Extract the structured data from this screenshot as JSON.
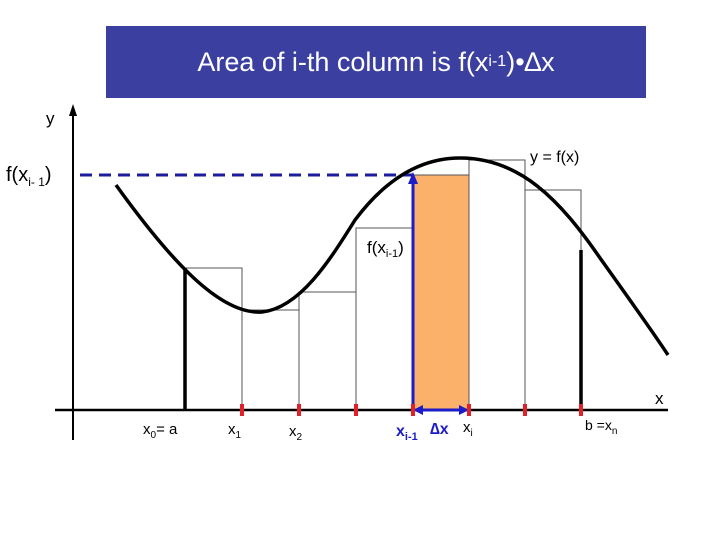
{
  "title": {
    "prefix": "Area of i-th column is f(x",
    "sub": "i-1",
    "suffix": ")•∆x"
  },
  "axes": {
    "y_label": "y",
    "x_label": "x"
  },
  "curve_label": "y = f(x)",
  "f_left": {
    "base": "f(x",
    "sub": "i- 1",
    "close": ")"
  },
  "f_column": {
    "base": "f(x",
    "sub": "i-1",
    "close": ")"
  },
  "ticks": {
    "x0": {
      "base": "x",
      "sub": "0",
      "rest": "= a"
    },
    "x1": {
      "base": "x",
      "sub": "1"
    },
    "x2": {
      "base": "x",
      "sub": "2"
    },
    "xim1": {
      "base": "x",
      "sub": "i-1"
    },
    "dx": "∆x",
    "xi": {
      "base": "x",
      "sub": "i"
    },
    "b": {
      "rest": "b =x",
      "sub": "n"
    }
  },
  "colors": {
    "title_bg": "#3b3fa0",
    "highlight_column": "#fbb169",
    "marker": "#e0202a",
    "blue_line": "#1c1cc8",
    "dashed": "#1c1c9c"
  }
}
